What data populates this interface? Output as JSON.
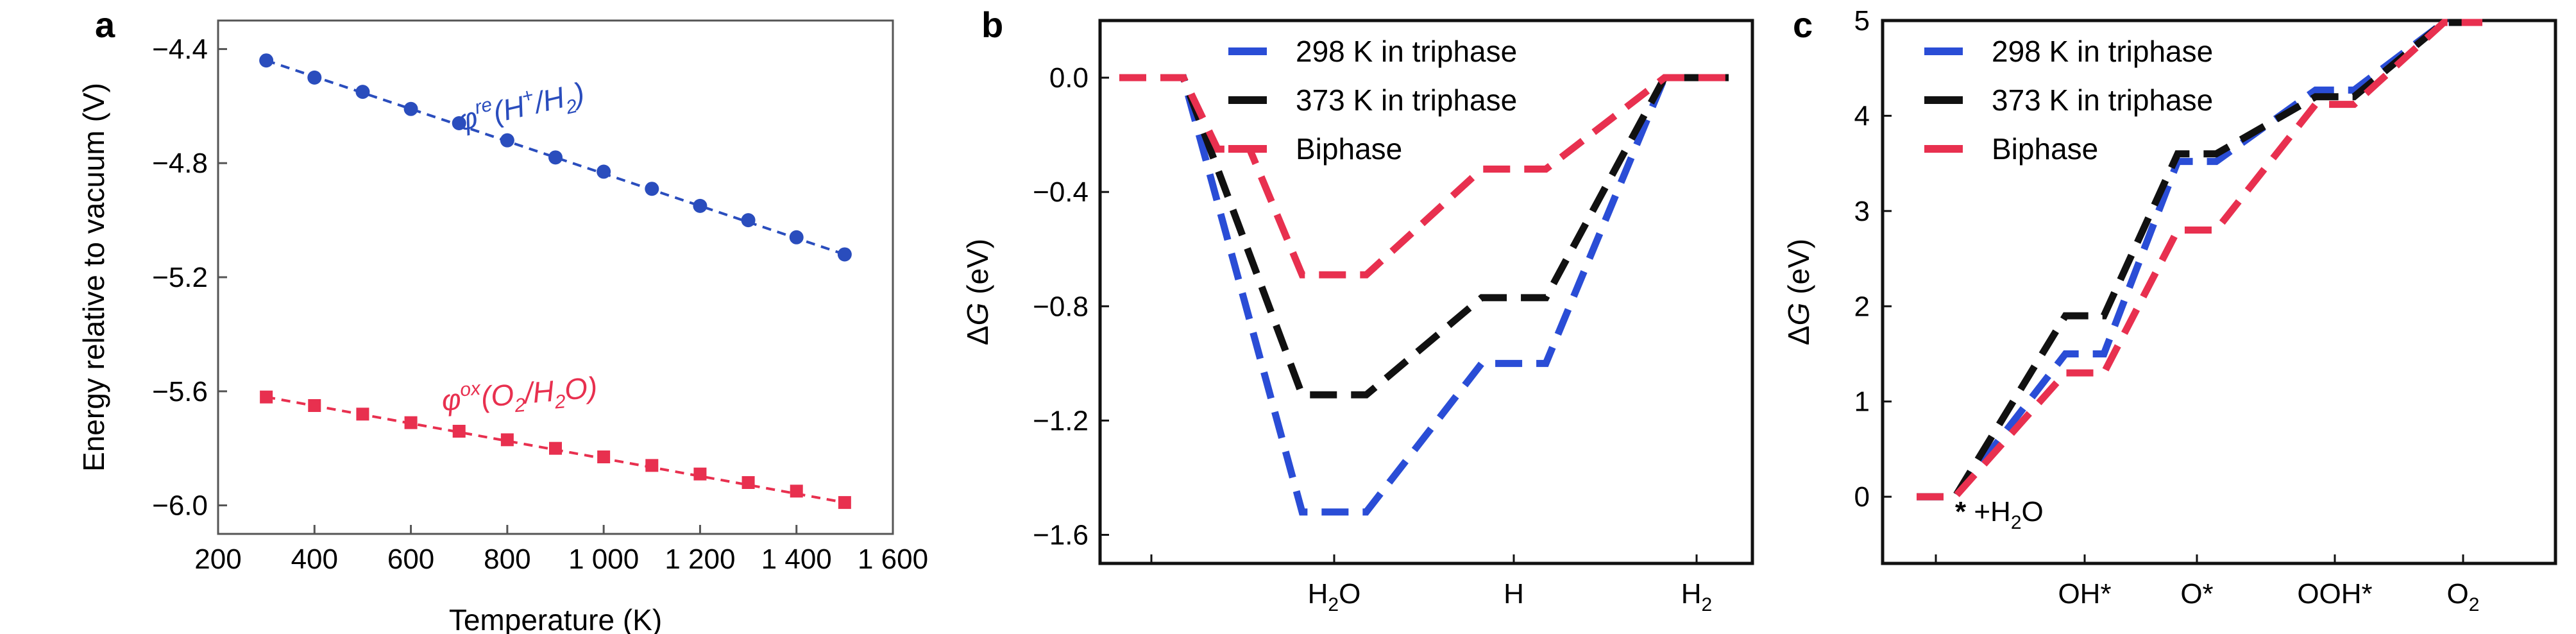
{
  "chart_data": [
    {
      "panel": "a",
      "type": "scatter",
      "xlabel": "Temperature (K)",
      "ylabel": "Energy relative to vacuum (V)",
      "xlim": [
        200,
        1600
      ],
      "ylim": [
        -6.1,
        -4.3
      ],
      "x_ticks": [
        {
          "value": 200,
          "label": "200"
        },
        {
          "value": 400,
          "label": "400"
        },
        {
          "value": 600,
          "label": "600"
        },
        {
          "value": 800,
          "label": "800"
        },
        {
          "value": 1000,
          "label": "1 000"
        },
        {
          "value": 1200,
          "label": "1 200"
        },
        {
          "value": 1400,
          "label": "1 400"
        },
        {
          "value": 1600,
          "label": "1 600"
        }
      ],
      "y_ticks": [
        {
          "value": -4.4,
          "label": "−4.4"
        },
        {
          "value": -4.8,
          "label": "−4.8"
        },
        {
          "value": -5.2,
          "label": "−5.2"
        },
        {
          "value": -5.6,
          "label": "−5.6"
        },
        {
          "value": -6.0,
          "label": "−6.0"
        }
      ],
      "grid": false,
      "series": [
        {
          "name": "φre(H+/H2)",
          "color": "#2a4dbd",
          "marker": "circle",
          "x": [
            300,
            400,
            500,
            600,
            700,
            800,
            900,
            1000,
            1100,
            1200,
            1300,
            1400,
            1500
          ],
          "y": [
            -4.44,
            -4.5,
            -4.55,
            -4.61,
            -4.66,
            -4.72,
            -4.78,
            -4.83,
            -4.89,
            -4.95,
            -5.0,
            -5.06,
            -5.12
          ]
        },
        {
          "name": "φox(O2/H2O)",
          "color": "#e8304f",
          "marker": "square",
          "x": [
            300,
            400,
            500,
            600,
            700,
            800,
            900,
            1000,
            1100,
            1200,
            1300,
            1400,
            1500
          ],
          "y": [
            -5.62,
            -5.65,
            -5.68,
            -5.71,
            -5.74,
            -5.77,
            -5.8,
            -5.83,
            -5.86,
            -5.89,
            -5.92,
            -5.95,
            -5.99
          ]
        }
      ],
      "annotations": [
        {
          "series": 0,
          "prefix": "φ",
          "sup": "re",
          "text": "(H",
          "sup2": "+",
          "text2": "/H",
          "sub": "2",
          "text3": ")"
        },
        {
          "series": 1,
          "prefix": "φ",
          "sup": "ox",
          "text": "(O",
          "sub": "2",
          "text2": "/H",
          "sub2": "2",
          "text3": "O)"
        }
      ]
    },
    {
      "panel": "b",
      "type": "line",
      "ylabel_prefix": "Δ",
      "ylabel_var": "G",
      "ylabel_unit": " (eV)",
      "ylim": [
        -1.7,
        0.2
      ],
      "y_ticks": [
        {
          "value": 0.0,
          "label": "0.0"
        },
        {
          "value": -0.4,
          "label": "−0.4"
        },
        {
          "value": -0.8,
          "label": "−0.8"
        },
        {
          "value": -1.2,
          "label": "−1.2"
        },
        {
          "value": -1.6,
          "label": "−1.6"
        }
      ],
      "categories": [
        {
          "label": "",
          "sub": ""
        },
        {
          "label": "H",
          "sub": "2",
          "label2": "O"
        },
        {
          "label": "H",
          "sub": ""
        },
        {
          "label": "H",
          "sub": "2"
        }
      ],
      "legend_position": "top",
      "series": [
        {
          "name": "298 K in triphase",
          "color": "#2a4dd6",
          "values": [
            0.0,
            -1.52,
            -1.0,
            0.0
          ]
        },
        {
          "name": "373 K in triphase",
          "color": "#111111",
          "values": [
            0.0,
            -1.11,
            -0.77,
            0.0
          ]
        },
        {
          "name": "Biphase",
          "color": "#e8304f",
          "values": [
            0.0,
            -0.69,
            -0.32,
            0.0
          ]
        }
      ],
      "extra_steps": [
        {
          "series": 2,
          "at": 0.45,
          "value": -0.25
        }
      ]
    },
    {
      "panel": "c",
      "type": "line",
      "ylabel_prefix": "Δ",
      "ylabel_var": "G",
      "ylabel_unit": " (eV)",
      "ylim": [
        -0.7,
        5.0
      ],
      "y_ticks": [
        {
          "value": 0,
          "label": "0"
        },
        {
          "value": 1,
          "label": "1"
        },
        {
          "value": 2,
          "label": "2"
        },
        {
          "value": 3,
          "label": "3"
        },
        {
          "value": 4,
          "label": "4"
        },
        {
          "value": 5,
          "label": "5"
        }
      ],
      "categories": [
        {
          "label": "",
          "sub": ""
        },
        {
          "label": "OH*",
          "sub": ""
        },
        {
          "label": "O*",
          "sub": ""
        },
        {
          "label": "OOH*",
          "sub": ""
        },
        {
          "label": "O",
          "sub": "2"
        }
      ],
      "legend_position": "top-left",
      "series": [
        {
          "name": "298 K in triphase",
          "color": "#2a4dd6",
          "values": [
            0.0,
            1.5,
            3.52,
            4.27,
            4.98
          ]
        },
        {
          "name": "373 K in triphase",
          "color": "#111111",
          "values": [
            0.0,
            1.9,
            3.6,
            4.2,
            4.98
          ]
        },
        {
          "name": "Biphase",
          "color": "#e8304f",
          "values": [
            0.0,
            1.3,
            2.8,
            4.12,
            4.98
          ]
        }
      ],
      "annotation": {
        "star": "*",
        "text": " +H",
        "sub": "2",
        "text2": "O"
      }
    }
  ],
  "panel_labels": [
    "a",
    "b",
    "c"
  ]
}
